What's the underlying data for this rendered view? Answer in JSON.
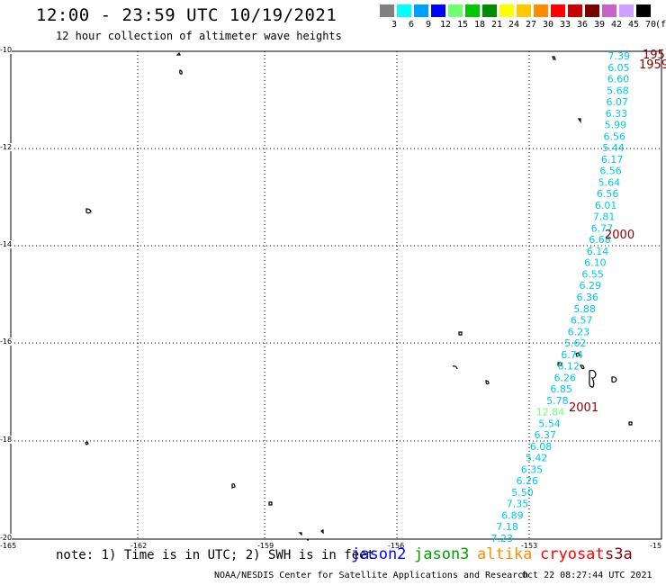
{
  "header": {
    "title": "12:00 - 23:59 UTC 10/19/2021",
    "subtitle": "12 hour collection of altimeter wave heights"
  },
  "legend": {
    "unit": "(ft)",
    "items": [
      {
        "label": "3",
        "color": "#808080"
      },
      {
        "label": "6",
        "color": "#00ffff"
      },
      {
        "label": "9",
        "color": "#00a0ff"
      },
      {
        "label": "12",
        "color": "#0000ff"
      },
      {
        "label": "15",
        "color": "#70ff70"
      },
      {
        "label": "18",
        "color": "#00c800"
      },
      {
        "label": "21",
        "color": "#008c00"
      },
      {
        "label": "24",
        "color": "#ffff00"
      },
      {
        "label": "27",
        "color": "#ffc800"
      },
      {
        "label": "30",
        "color": "#ff8c00"
      },
      {
        "label": "33",
        "color": "#ff0000"
      },
      {
        "label": "36",
        "color": "#c80000"
      },
      {
        "label": "39",
        "color": "#780000"
      },
      {
        "label": "42",
        "color": "#c864c8"
      },
      {
        "label": "45",
        "color": "#d0a0ff"
      },
      {
        "label": "70",
        "color": "#000000"
      }
    ]
  },
  "axes": {
    "lat_labels": [
      "-10",
      "-12",
      "-14",
      "-16",
      "-18",
      "-20"
    ],
    "lon_labels": [
      "-165",
      "-162",
      "-159",
      "-156",
      "-153",
      "-15"
    ]
  },
  "track": {
    "color": "#00c8e6",
    "highlight_color": "#70ff70",
    "values": [
      {
        "v": "7.39"
      },
      {
        "v": "6.05"
      },
      {
        "v": "6.60"
      },
      {
        "v": "5.68"
      },
      {
        "v": "6.07"
      },
      {
        "v": "6.33"
      },
      {
        "v": "5.99"
      },
      {
        "v": "6.56"
      },
      {
        "v": "5.44"
      },
      {
        "v": "6.17"
      },
      {
        "v": "6.56"
      },
      {
        "v": "5.64"
      },
      {
        "v": "6.56"
      },
      {
        "v": "6.01"
      },
      {
        "v": "7.81"
      },
      {
        "v": "6.77"
      },
      {
        "v": "6.68"
      },
      {
        "v": "6.14"
      },
      {
        "v": "6.10"
      },
      {
        "v": "6.55"
      },
      {
        "v": "6.29"
      },
      {
        "v": "6.36"
      },
      {
        "v": "5.88"
      },
      {
        "v": "6.57"
      },
      {
        "v": "6.23"
      },
      {
        "v": "5.62"
      },
      {
        "v": "6.74"
      },
      {
        "v": "6.12"
      },
      {
        "v": "6.26"
      },
      {
        "v": "6.85"
      },
      {
        "v": "5.78"
      },
      {
        "v": "12.84",
        "hl": true
      },
      {
        "v": "5.54"
      },
      {
        "v": "6.37"
      },
      {
        "v": "6.08"
      },
      {
        "v": "5.42"
      },
      {
        "v": "6.35"
      },
      {
        "v": "6.26"
      },
      {
        "v": "5.50"
      },
      {
        "v": "7.35"
      },
      {
        "v": "6.89"
      },
      {
        "v": "7.18"
      },
      {
        "v": "7.23"
      }
    ]
  },
  "time_labels": {
    "color": "#8b0000",
    "items": [
      "195",
      "1959",
      "2000",
      "2001"
    ]
  },
  "footer": {
    "note": "note: 1) Time is in UTC; 2) SWH is in feet",
    "satellites": [
      {
        "name": "jason2",
        "color": "#0000ff"
      },
      {
        "name": "jason3",
        "color": "#00a000"
      },
      {
        "name": "altika",
        "color": "#ff8c00"
      },
      {
        "name": "cryosat",
        "color": "#ff0000"
      },
      {
        "name": "s3a",
        "color": "#8b0000"
      }
    ],
    "credit": "NOAA/NESDIS Center for Satellite Applications and Research",
    "timestamp": "Oct 22 08:27:44 UTC 2021"
  }
}
